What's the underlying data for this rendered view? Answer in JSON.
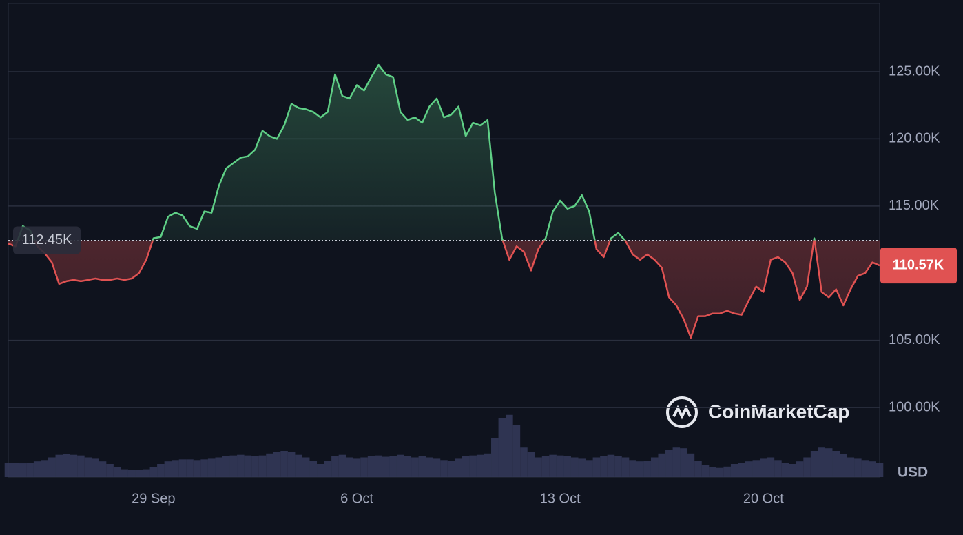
{
  "chart_data": {
    "type": "line",
    "unit": "USD",
    "watermark": "CoinMarketCap",
    "categories": [
      null,
      null,
      null,
      null,
      null,
      null,
      null,
      null,
      null,
      null,
      null,
      null,
      null,
      null,
      null,
      null,
      null,
      null,
      null,
      null,
      "29 Sep",
      null,
      null,
      null,
      null,
      null,
      null,
      null,
      null,
      null,
      null,
      null,
      null,
      null,
      null,
      null,
      null,
      null,
      null,
      null,
      null,
      null,
      null,
      null,
      null,
      null,
      null,
      null,
      "6 Oct",
      null,
      null,
      null,
      null,
      null,
      null,
      null,
      null,
      null,
      null,
      null,
      null,
      null,
      null,
      null,
      null,
      null,
      null,
      null,
      null,
      null,
      null,
      null,
      null,
      null,
      null,
      null,
      "13 Oct",
      null,
      null,
      null,
      null,
      null,
      null,
      null,
      null,
      null,
      null,
      null,
      null,
      null,
      null,
      null,
      null,
      null,
      null,
      null,
      null,
      null,
      null,
      null,
      null,
      null,
      null,
      null,
      "20 Oct",
      null,
      null,
      null,
      null,
      null,
      null,
      null,
      null,
      null,
      null,
      null,
      null,
      null,
      null,
      null,
      null
    ],
    "series": [
      {
        "name": "Price",
        "values": [
          112.2,
          112.0,
          113.5,
          113.2,
          112.0,
          111.5,
          110.8,
          109.2,
          109.4,
          109.5,
          109.4,
          109.5,
          109.6,
          109.5,
          109.5,
          109.6,
          109.5,
          109.6,
          110.0,
          111.0,
          112.6,
          112.7,
          114.2,
          114.5,
          114.3,
          113.5,
          113.3,
          114.6,
          114.5,
          116.5,
          117.8,
          118.2,
          118.6,
          118.7,
          119.2,
          120.6,
          120.2,
          120.0,
          121.0,
          122.6,
          122.3,
          122.2,
          122.0,
          121.6,
          122.0,
          124.8,
          123.2,
          123.0,
          124.0,
          123.6,
          124.6,
          125.5,
          124.8,
          124.6,
          122.0,
          121.4,
          121.6,
          121.2,
          122.4,
          123.0,
          121.6,
          121.8,
          122.4,
          120.2,
          121.2,
          121.0,
          121.4,
          116.0,
          112.6,
          111.0,
          112.0,
          111.6,
          110.2,
          111.8,
          112.6,
          114.6,
          115.4,
          114.8,
          115.0,
          115.8,
          114.6,
          111.8,
          111.2,
          112.6,
          113.0,
          112.4,
          111.4,
          111.0,
          111.4,
          111.0,
          110.4,
          108.2,
          107.6,
          106.6,
          105.2,
          106.8,
          106.8,
          107.0,
          107.0,
          107.2,
          107.0,
          106.9,
          108.0,
          109.0,
          108.6,
          111.0,
          111.2,
          110.8,
          110.0,
          108.0,
          109.0,
          112.6,
          108.6,
          108.2,
          108.8,
          107.6,
          108.8,
          109.8,
          110.0,
          110.8,
          110.57
        ]
      },
      {
        "name": "Volume",
        "values": [
          22,
          22,
          21,
          22,
          24,
          26,
          30,
          34,
          35,
          34,
          33,
          30,
          28,
          24,
          20,
          15,
          12,
          11,
          11,
          12,
          15,
          20,
          24,
          26,
          27,
          27,
          26,
          27,
          28,
          30,
          32,
          33,
          34,
          33,
          32,
          33,
          36,
          38,
          40,
          38,
          34,
          30,
          25,
          20,
          25,
          32,
          34,
          30,
          28,
          30,
          32,
          33,
          31,
          32,
          34,
          32,
          30,
          32,
          30,
          28,
          26,
          25,
          28,
          32,
          33,
          34,
          36,
          60,
          90,
          95,
          80,
          45,
          38,
          30,
          32,
          34,
          33,
          32,
          30,
          28,
          26,
          30,
          32,
          34,
          32,
          30,
          26,
          24,
          25,
          30,
          36,
          42,
          45,
          44,
          36,
          25,
          18,
          15,
          14,
          16,
          20,
          22,
          24,
          26,
          28,
          30,
          26,
          22,
          20,
          24,
          30,
          40,
          45,
          44,
          40,
          35,
          30,
          28,
          26,
          24,
          22
        ]
      }
    ],
    "baseline": {
      "value": 112.45,
      "label": "112.45K"
    },
    "current": {
      "value": 110.57,
      "label": "110.57K"
    },
    "colors": {
      "up": "#5fcf86",
      "down": "#e05252",
      "volume": "#353b5c"
    },
    "ylim": [
      94.82,
      130.08
    ],
    "vlim": [
      0,
      100
    ],
    "yticks": [
      {
        "value": 100,
        "label": "100.00K"
      },
      {
        "value": 105,
        "label": "105.00K"
      },
      {
        "value": 115,
        "label": "115.00K"
      },
      {
        "value": 120,
        "label": "120.00K"
      },
      {
        "value": 125,
        "label": "125.00K"
      }
    ],
    "grid": true
  }
}
